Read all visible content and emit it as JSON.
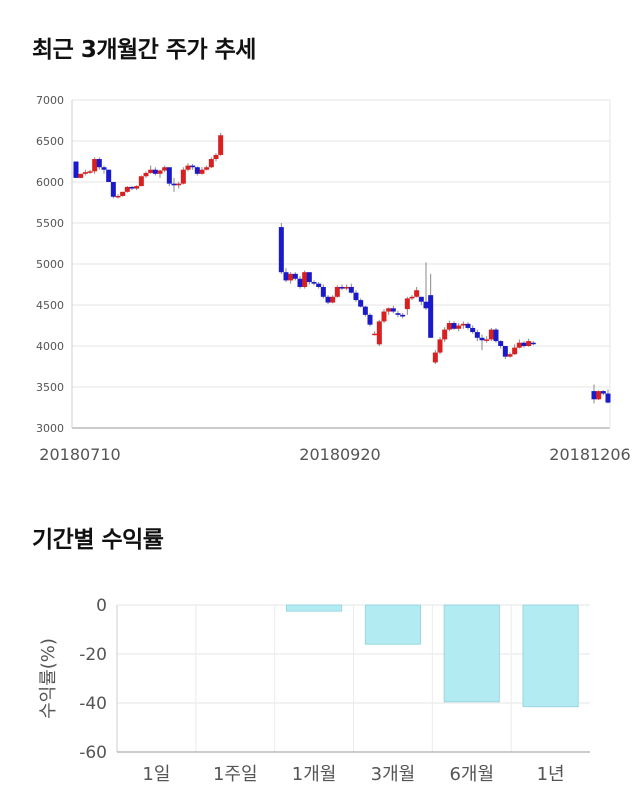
{
  "sections": {
    "stock_title": "최근 3개월간 주가 추세",
    "returns_title": "기간별 수익률"
  },
  "chart_data": [
    {
      "type": "candlestick",
      "title": "최근 3개월간 주가 추세",
      "ylim": [
        3000,
        7000
      ],
      "yticks": [
        "7000",
        "6500",
        "6000",
        "5500",
        "5000",
        "4500",
        "4000",
        "3500",
        "3000"
      ],
      "xtick_labels": [
        "20180710",
        "20180920",
        "20181206"
      ],
      "grid": true,
      "colors": {
        "up": "#d92020",
        "down": "#1a1acb"
      },
      "ohlc": [
        [
          6250,
          6250,
          6050,
          6050
        ],
        [
          6050,
          6100,
          6050,
          6100
        ],
        [
          6100,
          6150,
          6080,
          6120
        ],
        [
          6120,
          6150,
          6100,
          6130
        ],
        [
          6130,
          6300,
          6100,
          6280
        ],
        [
          6280,
          6300,
          6150,
          6180
        ],
        [
          6180,
          6200,
          6100,
          6150
        ],
        [
          6150,
          6150,
          6000,
          6000
        ],
        [
          6000,
          6000,
          5800,
          5820
        ],
        [
          5820,
          5850,
          5800,
          5830
        ],
        [
          5830,
          5880,
          5820,
          5880
        ],
        [
          5880,
          5950,
          5870,
          5940
        ],
        [
          5940,
          5950,
          5900,
          5920
        ],
        [
          5920,
          5960,
          5900,
          5950
        ],
        [
          5950,
          6080,
          5950,
          6070
        ],
        [
          6070,
          6130,
          6050,
          6110
        ],
        [
          6110,
          6200,
          6100,
          6150
        ],
        [
          6150,
          6180,
          6080,
          6100
        ],
        [
          6100,
          6150,
          6050,
          6140
        ],
        [
          6140,
          6200,
          6120,
          6180
        ],
        [
          6180,
          6180,
          5950,
          5980
        ],
        [
          5980,
          6050,
          5880,
          5960
        ],
        [
          5960,
          6000,
          5920,
          5980
        ],
        [
          5980,
          6180,
          5970,
          6150
        ],
        [
          6150,
          6230,
          6130,
          6200
        ],
        [
          6200,
          6220,
          6150,
          6180
        ],
        [
          6180,
          6190,
          6080,
          6100
        ],
        [
          6100,
          6180,
          6090,
          6150
        ],
        [
          6150,
          6200,
          6140,
          6180
        ],
        [
          6180,
          6300,
          6170,
          6280
        ],
        [
          6280,
          6350,
          6250,
          6330
        ],
        [
          6330,
          6600,
          6320,
          6570
        ],
        [
          5450,
          5500,
          4880,
          4900
        ],
        [
          4900,
          4950,
          4780,
          4800
        ],
        [
          4800,
          4900,
          4760,
          4880
        ],
        [
          4880,
          4900,
          4800,
          4820
        ],
        [
          4820,
          4850,
          4700,
          4720
        ],
        [
          4720,
          4920,
          4700,
          4900
        ],
        [
          4900,
          4900,
          4750,
          4780
        ],
        [
          4780,
          4800,
          4740,
          4760
        ],
        [
          4760,
          4780,
          4700,
          4720
        ],
        [
          4720,
          4750,
          4580,
          4600
        ],
        [
          4600,
          4620,
          4510,
          4530
        ],
        [
          4530,
          4620,
          4520,
          4600
        ],
        [
          4600,
          4740,
          4590,
          4720
        ],
        [
          4720,
          4750,
          4680,
          4700
        ],
        [
          4700,
          4750,
          4680,
          4720
        ],
        [
          4720,
          4760,
          4640,
          4650
        ],
        [
          4650,
          4680,
          4540,
          4560
        ],
        [
          4560,
          4580,
          4470,
          4480
        ],
        [
          4480,
          4490,
          4360,
          4380
        ],
        [
          4380,
          4400,
          4240,
          4260
        ],
        [
          4150,
          4180,
          4130,
          4150
        ],
        [
          4020,
          4320,
          4000,
          4300
        ],
        [
          4300,
          4450,
          4280,
          4420
        ],
        [
          4420,
          4470,
          4380,
          4460
        ],
        [
          4460,
          4490,
          4400,
          4420
        ],
        [
          4400,
          4430,
          4350,
          4380
        ],
        [
          4380,
          4400,
          4340,
          4360
        ],
        [
          4450,
          4600,
          4380,
          4580
        ],
        [
          4580,
          4620,
          4560,
          4600
        ],
        [
          4600,
          4720,
          4590,
          4680
        ],
        [
          4600,
          4600,
          4500,
          4540
        ],
        [
          4540,
          5020,
          4440,
          4460
        ],
        [
          4620,
          4880,
          4100,
          4100
        ],
        [
          3800,
          3950,
          3780,
          3920
        ],
        [
          3920,
          4110,
          3900,
          4080
        ],
        [
          4080,
          4230,
          4050,
          4200
        ],
        [
          4200,
          4310,
          4180,
          4280
        ],
        [
          4280,
          4300,
          4200,
          4210
        ],
        [
          4210,
          4280,
          4180,
          4250
        ],
        [
          4250,
          4300,
          4210,
          4270
        ],
        [
          4270,
          4290,
          4200,
          4220
        ],
        [
          4220,
          4250,
          4150,
          4170
        ],
        [
          4170,
          4200,
          4060,
          4100
        ],
        [
          4100,
          4140,
          3950,
          4070
        ],
        [
          4070,
          4120,
          4040,
          4080
        ],
        [
          4080,
          4220,
          4060,
          4200
        ],
        [
          4200,
          4220,
          4040,
          4060
        ],
        [
          4060,
          4070,
          3970,
          4000
        ],
        [
          4000,
          4000,
          3840,
          3870
        ],
        [
          3870,
          3920,
          3860,
          3900
        ],
        [
          3900,
          4020,
          3890,
          3980
        ],
        [
          3980,
          4080,
          3970,
          4040
        ],
        [
          4040,
          4060,
          3980,
          4000
        ],
        [
          4000,
          4090,
          3990,
          4060
        ],
        [
          4040,
          4060,
          4010,
          4030
        ],
        [
          3450,
          3530,
          3300,
          3350
        ],
        [
          3350,
          3460,
          3340,
          3450
        ],
        [
          3450,
          3460,
          3400,
          3420
        ],
        [
          3420,
          3470,
          3300,
          3310
        ]
      ],
      "gaps": [
        32,
        87
      ]
    },
    {
      "type": "bar",
      "title": "기간별 수익률",
      "ylabel": "수익률(%)",
      "categories": [
        "1일",
        "1주일",
        "1개월",
        "3개월",
        "6개월",
        "1년"
      ],
      "values": [
        0,
        0,
        -2.5,
        -16,
        -39.5,
        -41.5
      ],
      "ylim": [
        -60,
        0
      ],
      "yticks": [
        "0",
        "-20",
        "-40",
        "-60"
      ],
      "grid": true,
      "colors": {
        "fill": "#b3ebf2",
        "stroke": "#9ad7e0"
      }
    }
  ]
}
